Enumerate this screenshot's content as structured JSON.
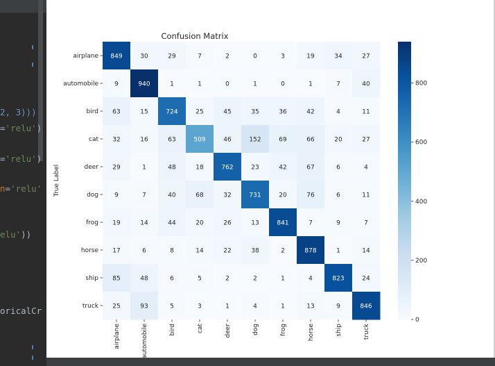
{
  "editor": {
    "code_lines": [
      {
        "segments": [
          {
            "t": "2, 3)))",
            "c": "num"
          }
        ]
      },
      {
        "segments": [
          {
            "t": "=",
            "c": "plain"
          },
          {
            "t": "'relu'",
            "c": "str"
          },
          {
            "t": ")",
            "c": "plain"
          }
        ]
      },
      {
        "segments": [
          {
            "t": "=",
            "c": "plain"
          },
          {
            "t": "'relu'",
            "c": "str"
          },
          {
            "t": ")",
            "c": "plain"
          }
        ]
      },
      {
        "segments": [
          {
            "t": "n",
            "c": "kw"
          },
          {
            "t": "=",
            "c": "plain"
          },
          {
            "t": "'relu'",
            "c": "str"
          }
        ]
      },
      {
        "segments": [
          {
            "t": "elu'",
            "c": "str"
          },
          {
            "t": "))",
            "c": "plain"
          }
        ]
      },
      {
        "segments": [
          {
            "t": "oricalCr",
            "c": "plain"
          }
        ]
      }
    ]
  },
  "chart_data": {
    "type": "heatmap",
    "title": "Confusion Matrix",
    "ylabel": "True Label",
    "xlabel": "",
    "row_labels": [
      "airplane",
      "automobile",
      "bird",
      "cat",
      "deer",
      "dog",
      "frog",
      "horse",
      "ship",
      "truck"
    ],
    "col_labels": [
      "airplane",
      "automobile",
      "bird",
      "cat",
      "deer",
      "dog",
      "frog",
      "horse",
      "ship",
      "truck"
    ],
    "values": [
      [
        849,
        30,
        29,
        7,
        2,
        0,
        3,
        19,
        34,
        27
      ],
      [
        9,
        940,
        1,
        1,
        0,
        1,
        0,
        1,
        7,
        40
      ],
      [
        63,
        15,
        724,
        25,
        45,
        35,
        36,
        42,
        4,
        11
      ],
      [
        32,
        16,
        63,
        509,
        46,
        152,
        69,
        66,
        20,
        27
      ],
      [
        29,
        1,
        48,
        18,
        762,
        23,
        42,
        67,
        6,
        4
      ],
      [
        9,
        7,
        40,
        68,
        32,
        731,
        20,
        76,
        6,
        11
      ],
      [
        19,
        14,
        44,
        20,
        26,
        13,
        841,
        7,
        9,
        7
      ],
      [
        17,
        6,
        8,
        14,
        22,
        38,
        2,
        878,
        1,
        14
      ],
      [
        85,
        48,
        6,
        5,
        2,
        2,
        1,
        4,
        823,
        24
      ],
      [
        25,
        93,
        5,
        3,
        1,
        4,
        1,
        13,
        9,
        846
      ]
    ],
    "colormap": "Blues",
    "vmin": 0,
    "vmax": 940,
    "colorbar_ticks": [
      0,
      200,
      400,
      600,
      800
    ]
  }
}
